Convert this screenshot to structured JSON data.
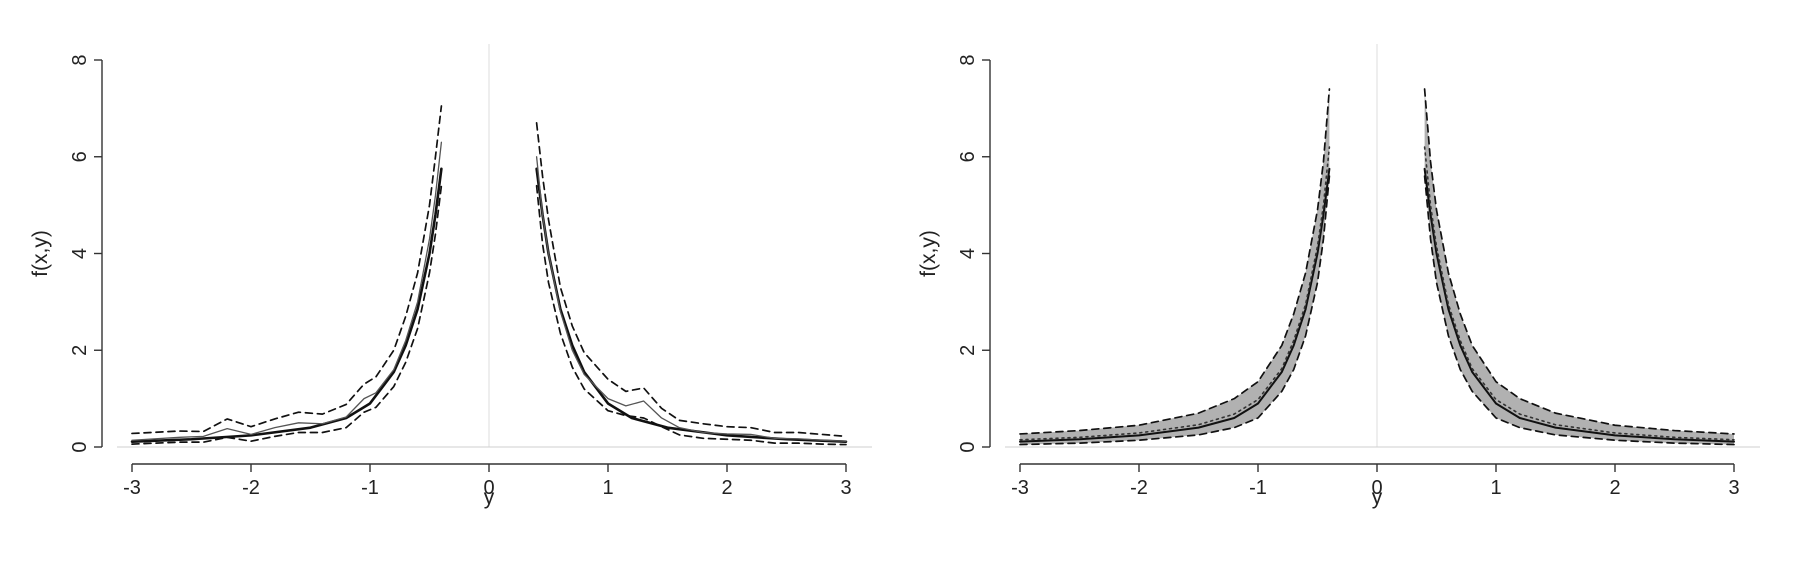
{
  "chart_data": [
    {
      "type": "line",
      "xlabel": "y",
      "ylabel": "f(x,y)",
      "xlim": [
        -3,
        3
      ],
      "ylim": [
        0,
        8
      ],
      "xticks": [
        -3,
        -2,
        -1,
        0,
        1,
        2,
        3
      ],
      "yticks": [
        0,
        2,
        4,
        6,
        8
      ],
      "grid": false,
      "reference_line_x": 0,
      "series": [
        {
          "role": "true-density",
          "style": "solid-thick",
          "color": "#111111",
          "left": {
            "x": [
              -3.0,
              -2.5,
              -2.0,
              -1.5,
              -1.2,
              -1.0,
              -0.8,
              -0.7,
              -0.6,
              -0.5,
              -0.45,
              -0.4
            ],
            "y": [
              0.11,
              0.16,
              0.24,
              0.4,
              0.6,
              0.9,
              1.55,
              2.1,
              2.85,
              4.0,
              4.8,
              5.75
            ]
          },
          "right": {
            "x": [
              0.4,
              0.45,
              0.5,
              0.6,
              0.7,
              0.8,
              1.0,
              1.2,
              1.5,
              2.0,
              2.5,
              3.0
            ],
            "y": [
              5.75,
              4.8,
              4.0,
              2.85,
              2.1,
              1.55,
              0.9,
              0.6,
              0.4,
              0.24,
              0.16,
              0.11
            ]
          }
        },
        {
          "role": "estimate",
          "style": "solid-thin",
          "color": "#555555",
          "left": {
            "x": [
              -3.0,
              -2.6,
              -2.4,
              -2.2,
              -2.0,
              -1.8,
              -1.6,
              -1.4,
              -1.2,
              -1.05,
              -0.95,
              -0.8,
              -0.7,
              -0.6,
              -0.5,
              -0.45,
              -0.4
            ],
            "y": [
              0.14,
              0.2,
              0.22,
              0.38,
              0.26,
              0.4,
              0.5,
              0.48,
              0.62,
              1.0,
              1.12,
              1.6,
              2.2,
              3.0,
              4.3,
              5.2,
              6.3
            ]
          },
          "right": {
            "x": [
              0.4,
              0.45,
              0.5,
              0.6,
              0.7,
              0.8,
              1.0,
              1.15,
              1.3,
              1.45,
              1.6,
              1.8,
              2.0,
              2.2,
              2.4,
              2.6,
              2.8,
              3.0
            ],
            "y": [
              6.0,
              4.8,
              4.0,
              2.8,
              2.0,
              1.5,
              1.0,
              0.85,
              0.95,
              0.6,
              0.4,
              0.3,
              0.27,
              0.26,
              0.18,
              0.17,
              0.14,
              0.12
            ]
          }
        },
        {
          "role": "upper-band",
          "style": "dashed",
          "color": "#111111",
          "left": {
            "x": [
              -3.0,
              -2.6,
              -2.4,
              -2.2,
              -2.0,
              -1.8,
              -1.6,
              -1.4,
              -1.2,
              -1.05,
              -0.95,
              -0.8,
              -0.7,
              -0.6,
              -0.5,
              -0.45,
              -0.4
            ],
            "y": [
              0.28,
              0.33,
              0.32,
              0.58,
              0.42,
              0.58,
              0.72,
              0.68,
              0.88,
              1.3,
              1.45,
              2.0,
              2.7,
              3.6,
              5.0,
              6.0,
              7.05
            ]
          },
          "right": {
            "x": [
              0.4,
              0.45,
              0.5,
              0.6,
              0.7,
              0.8,
              1.0,
              1.15,
              1.3,
              1.45,
              1.6,
              1.8,
              2.0,
              2.2,
              2.4,
              2.6,
              2.8,
              3.0
            ],
            "y": [
              6.7,
              5.6,
              4.7,
              3.3,
              2.5,
              1.95,
              1.4,
              1.15,
              1.22,
              0.8,
              0.55,
              0.48,
              0.42,
              0.4,
              0.3,
              0.3,
              0.26,
              0.22
            ]
          }
        },
        {
          "role": "lower-band",
          "style": "dashed",
          "color": "#111111",
          "left": {
            "x": [
              -3.0,
              -2.6,
              -2.4,
              -2.2,
              -2.0,
              -1.8,
              -1.6,
              -1.4,
              -1.2,
              -1.05,
              -0.95,
              -0.8,
              -0.7,
              -0.6,
              -0.5,
              -0.45,
              -0.4
            ],
            "y": [
              0.06,
              0.1,
              0.1,
              0.2,
              0.12,
              0.22,
              0.3,
              0.3,
              0.4,
              0.72,
              0.82,
              1.25,
              1.75,
              2.45,
              3.6,
              4.4,
              5.4
            ]
          },
          "right": {
            "x": [
              0.4,
              0.45,
              0.5,
              0.6,
              0.7,
              0.8,
              1.0,
              1.15,
              1.3,
              1.45,
              1.6,
              1.8,
              2.0,
              2.2,
              2.4,
              2.6,
              2.8,
              3.0
            ],
            "y": [
              5.4,
              4.2,
              3.4,
              2.35,
              1.65,
              1.2,
              0.75,
              0.65,
              0.6,
              0.42,
              0.25,
              0.18,
              0.16,
              0.14,
              0.08,
              0.08,
              0.06,
              0.05
            ]
          }
        }
      ]
    },
    {
      "type": "line",
      "xlabel": "y",
      "ylabel": "f(x,y)",
      "xlim": [
        -3,
        3
      ],
      "ylim": [
        0,
        8
      ],
      "xticks": [
        -3,
        -2,
        -1,
        0,
        1,
        2,
        3
      ],
      "yticks": [
        0,
        2,
        4,
        6,
        8
      ],
      "grid": false,
      "reference_line_x": 0,
      "band_fill_color": "#a9a9a9",
      "series": [
        {
          "role": "band-upper",
          "style": "dashed",
          "color": "#111111",
          "left": {
            "x": [
              -3.0,
              -2.5,
              -2.0,
              -1.5,
              -1.2,
              -1.0,
              -0.8,
              -0.7,
              -0.6,
              -0.5,
              -0.45,
              -0.4
            ],
            "y": [
              0.27,
              0.34,
              0.45,
              0.7,
              1.0,
              1.35,
              2.1,
              2.75,
              3.6,
              4.9,
              5.9,
              7.4
            ]
          },
          "right": {
            "x": [
              0.4,
              0.45,
              0.5,
              0.6,
              0.7,
              0.8,
              1.0,
              1.2,
              1.5,
              2.0,
              2.5,
              3.0
            ],
            "y": [
              7.4,
              5.9,
              4.9,
              3.6,
              2.75,
              2.1,
              1.35,
              1.0,
              0.7,
              0.45,
              0.34,
              0.27
            ]
          }
        },
        {
          "role": "band-lower",
          "style": "dashed",
          "color": "#111111",
          "left": {
            "x": [
              -3.0,
              -2.5,
              -2.0,
              -1.5,
              -1.2,
              -1.0,
              -0.8,
              -0.7,
              -0.6,
              -0.5,
              -0.45,
              -0.4
            ],
            "y": [
              0.05,
              0.08,
              0.14,
              0.25,
              0.4,
              0.6,
              1.15,
              1.6,
              2.3,
              3.4,
              4.3,
              5.6
            ]
          },
          "right": {
            "x": [
              0.4,
              0.45,
              0.5,
              0.6,
              0.7,
              0.8,
              1.0,
              1.2,
              1.5,
              2.0,
              2.5,
              3.0
            ],
            "y": [
              5.6,
              4.3,
              3.4,
              2.3,
              1.6,
              1.15,
              0.6,
              0.4,
              0.25,
              0.14,
              0.08,
              0.05
            ]
          }
        },
        {
          "role": "true-density",
          "style": "solid",
          "color": "#111111",
          "left": {
            "x": [
              -3.0,
              -2.5,
              -2.0,
              -1.5,
              -1.2,
              -1.0,
              -0.8,
              -0.7,
              -0.6,
              -0.5,
              -0.45,
              -0.4
            ],
            "y": [
              0.11,
              0.16,
              0.24,
              0.4,
              0.6,
              0.9,
              1.55,
              2.1,
              2.85,
              4.0,
              4.8,
              5.75
            ]
          },
          "right": {
            "x": [
              0.4,
              0.45,
              0.5,
              0.6,
              0.7,
              0.8,
              1.0,
              1.2,
              1.5,
              2.0,
              2.5,
              3.0
            ],
            "y": [
              5.75,
              4.8,
              4.0,
              2.85,
              2.1,
              1.55,
              0.9,
              0.6,
              0.4,
              0.24,
              0.16,
              0.11
            ]
          }
        },
        {
          "role": "mean-estimate",
          "style": "dotted",
          "color": "#333333",
          "left": {
            "x": [
              -3.0,
              -2.5,
              -2.0,
              -1.5,
              -1.2,
              -1.0,
              -0.8,
              -0.7,
              -0.6,
              -0.5,
              -0.45,
              -0.4
            ],
            "y": [
              0.15,
              0.2,
              0.29,
              0.46,
              0.68,
              0.98,
              1.62,
              2.2,
              2.95,
              4.15,
              5.0,
              6.2
            ]
          },
          "right": {
            "x": [
              0.4,
              0.45,
              0.5,
              0.6,
              0.7,
              0.8,
              1.0,
              1.2,
              1.5,
              2.0,
              2.5,
              3.0
            ],
            "y": [
              6.2,
              5.0,
              4.15,
              2.95,
              2.2,
              1.62,
              0.98,
              0.68,
              0.46,
              0.29,
              0.2,
              0.15
            ]
          }
        }
      ]
    }
  ]
}
